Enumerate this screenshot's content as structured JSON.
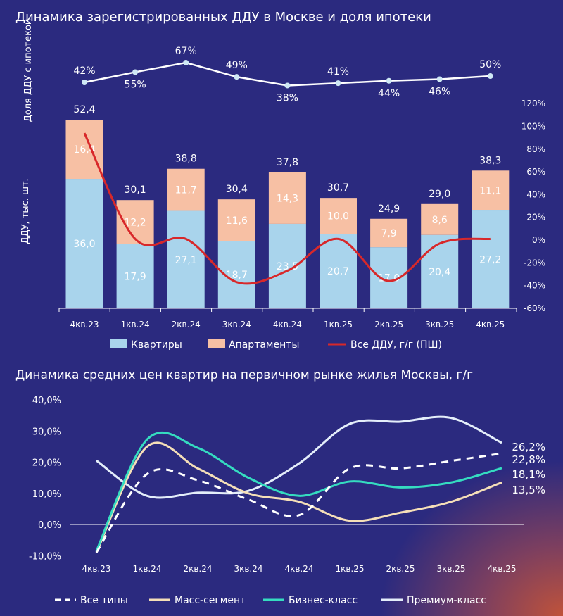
{
  "chart_data": [
    {
      "type": "bar",
      "title": "Динамика  зарегистрированных  ДДУ  в  Москве и доля ипотеки",
      "ylabel": "ДДУ, тыс. шт.",
      "ylabel_top": "Доля ДДУ с ипотекой",
      "categories": [
        "4кв.23",
        "1кв.24",
        "2кв.24",
        "3кв.24",
        "4кв.24",
        "1кв.25",
        "2кв.25",
        "3кв.25",
        "4кв.25"
      ],
      "stacked": true,
      "series": [
        {
          "name": "Квартиры",
          "color": "#a9d4ec",
          "values": [
            36.0,
            17.9,
            27.1,
            18.7,
            23.5,
            20.7,
            17.0,
            20.4,
            27.2
          ],
          "labels": [
            "36,0",
            "17,9",
            "27,1",
            "18,7",
            "23,5",
            "20,7",
            "17,0",
            "20,4",
            "27,2"
          ]
        },
        {
          "name": "Апартаменты",
          "color": "#f7c0a4",
          "values": [
            16.4,
            12.2,
            11.7,
            11.6,
            14.3,
            10.0,
            7.9,
            8.6,
            11.1
          ],
          "labels": [
            "16,4",
            "12,2",
            "11,7",
            "11,6",
            "14,3",
            "10,0",
            "7,9",
            "8,6",
            "11,1"
          ]
        }
      ],
      "totals": [
        52.4,
        30.1,
        38.8,
        30.4,
        37.8,
        30.7,
        24.9,
        29.0,
        38.3
      ],
      "total_labels": [
        "52,4",
        "30,1",
        "38,8",
        "30,4",
        "37,8",
        "30,7",
        "24,9",
        "29,0",
        "38,3"
      ],
      "line_yoy": {
        "name": "Все ДДУ, г/г (ПШ)",
        "color": "#d8282a",
        "axis": "right",
        "values": [
          94,
          1,
          1,
          -37,
          -27,
          1,
          -36,
          -3,
          1
        ]
      },
      "right_axis": {
        "ylim": [
          -60,
          120
        ],
        "ticks": [
          "120%",
          "100%",
          "80%",
          "60%",
          "40%",
          "20%",
          "0%",
          "-20%",
          "-40%",
          "-60%"
        ]
      },
      "mortgage_share": {
        "values": [
          42,
          55,
          67,
          49,
          38,
          41,
          44,
          46,
          50
        ],
        "labels": [
          "42%",
          "55%",
          "67%",
          "49%",
          "38%",
          "41%",
          "44%",
          "46%",
          "50%"
        ]
      },
      "legend": [
        "Квартиры",
        "Апартаменты",
        "Все ДДУ, г/г (ПШ)"
      ]
    },
    {
      "type": "line",
      "title": "Динамика средних цен квартир на первичном рынке жилья Москвы, г/г",
      "categories": [
        "4кв.23",
        "1кв.24",
        "2кв.24",
        "3кв.24",
        "4кв.24",
        "1кв.25",
        "2кв.25",
        "3кв.25",
        "4кв.25"
      ],
      "ylim": [
        -10,
        40
      ],
      "yticks": [
        "40,0%",
        "30,0%",
        "20,0%",
        "10,0%",
        "0,0%",
        "-10,0%"
      ],
      "series": [
        {
          "name": "Все типы",
          "color": "#ffffff",
          "dashed": true,
          "values": [
            -9,
            16.2,
            14.2,
            8,
            3,
            18,
            18,
            20.4,
            22.8
          ],
          "end_label": "22,8%"
        },
        {
          "name": "Масс-сегмент",
          "color": "#f5dfb8",
          "values": [
            -9,
            25,
            18,
            10,
            7.3,
            1.2,
            3.8,
            7.3,
            13.5
          ],
          "end_label": "13,5%"
        },
        {
          "name": "Бизнес-класс",
          "color": "#35dcc0",
          "values": [
            -8.5,
            27.3,
            24.6,
            15,
            9.2,
            13.8,
            11.9,
            13.5,
            18.1
          ],
          "end_label": "18,1%"
        },
        {
          "name": "Премиум-класс",
          "color": "#e4eefa",
          "values": [
            20.5,
            9.2,
            10.2,
            10.8,
            19.6,
            32.3,
            33,
            34.2,
            26.2
          ],
          "end_label": "26,2%"
        }
      ],
      "legend_placement": "bottom"
    }
  ]
}
